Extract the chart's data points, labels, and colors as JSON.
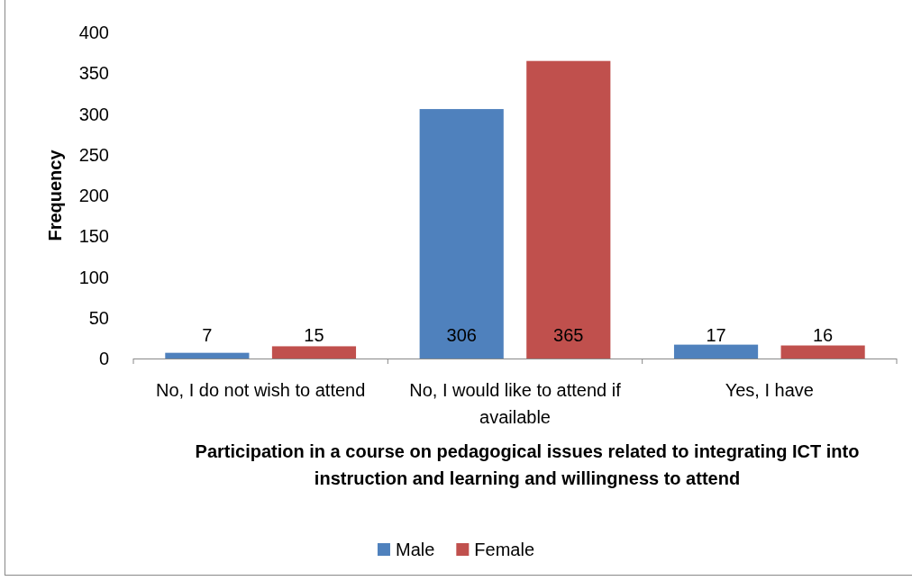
{
  "chart_data": {
    "type": "bar",
    "xlabel": "Participation in a course on pedagogical issues related to integrating ICT into instruction and learning and willingness to attend",
    "ylabel": "Frequency",
    "categories": [
      "No, I do not wish to attend",
      "No, I would like to attend if available",
      "Yes, I have"
    ],
    "series": [
      {
        "name": "Male",
        "color": "#4f81bd",
        "values": [
          7,
          306,
          17
        ]
      },
      {
        "name": "Female",
        "color": "#c0504d",
        "values": [
          15,
          365,
          16
        ]
      }
    ],
    "ylim": [
      0,
      400
    ],
    "yticks": [
      0,
      50,
      100,
      150,
      200,
      250,
      300,
      350,
      400
    ],
    "grid": false,
    "legend": "bottom",
    "data_labels": true
  }
}
